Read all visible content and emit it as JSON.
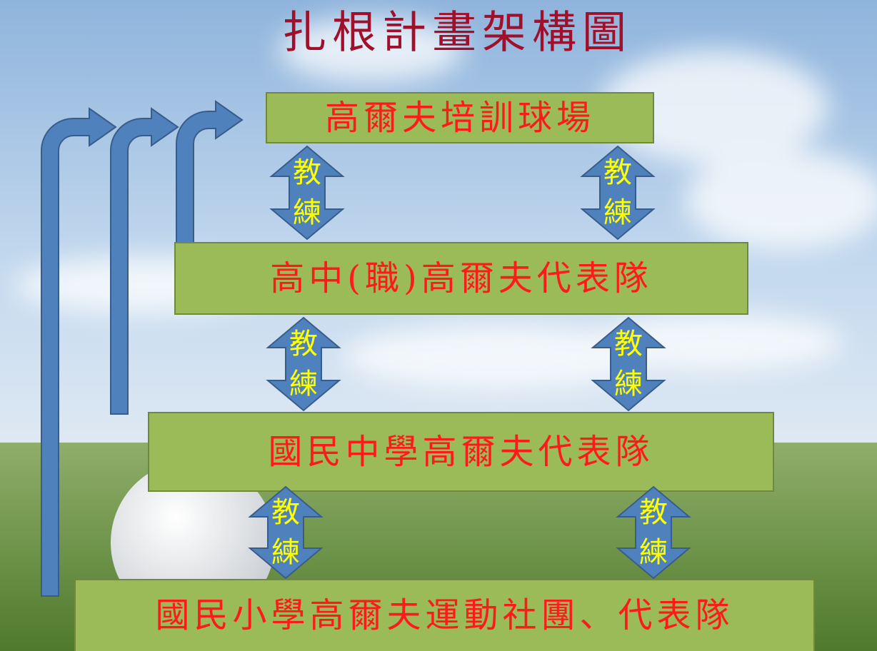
{
  "title": "扎根計畫架構圖",
  "nodes": [
    {
      "label": "高爾夫培訓球場"
    },
    {
      "label": "高中(職)高爾夫代表隊"
    },
    {
      "label": "國民中學高爾夫代表隊"
    },
    {
      "label": "國民小學高爾夫運動社團、代表隊"
    }
  ],
  "coach_arrows": [
    {
      "top": "教",
      "bottom": "練"
    },
    {
      "top": "教",
      "bottom": "練"
    },
    {
      "top": "教",
      "bottom": "練"
    },
    {
      "top": "教",
      "bottom": "練"
    },
    {
      "top": "教",
      "bottom": "練"
    },
    {
      "top": "教",
      "bottom": "練"
    }
  ]
}
